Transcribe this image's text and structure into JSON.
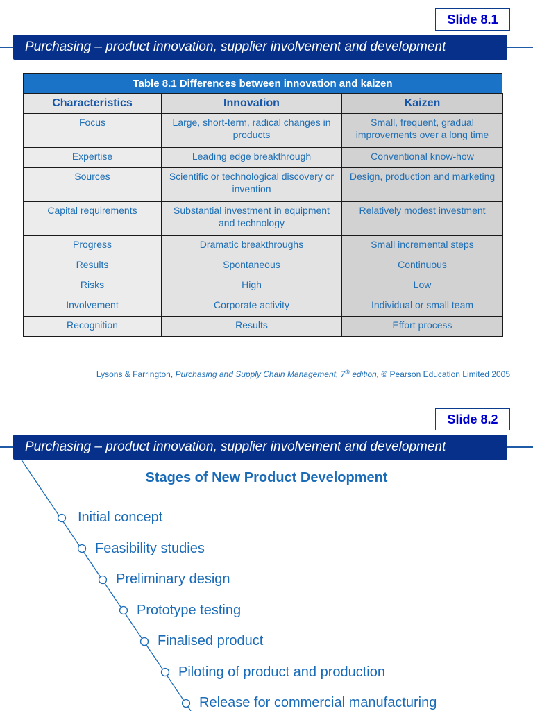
{
  "slide1": {
    "badge": "Slide 8.1",
    "title": "Purchasing – product innovation, supplier involvement and development",
    "table": {
      "caption": "Table 8.1 Differences between innovation and kaizen",
      "headers": [
        "Characteristics",
        "Innovation",
        "Kaizen"
      ],
      "rows": [
        [
          "Focus",
          "Large, short-term, radical changes in products",
          "Small, frequent, gradual improvements over a long time"
        ],
        [
          "Expertise",
          "Leading edge breakthrough",
          "Conventional know-how"
        ],
        [
          "Sources",
          "Scientific or technological discovery or invention",
          "Design, production and marketing"
        ],
        [
          "Capital requirements",
          "Substantial investment in equipment and technology",
          "Relatively modest investment"
        ],
        [
          "Progress",
          "Dramatic breakthroughs",
          "Small incremental steps"
        ],
        [
          "Results",
          "Spontaneous",
          "Continuous"
        ],
        [
          "Risks",
          "High",
          "Low"
        ],
        [
          "Involvement",
          "Corporate activity",
          "Individual or small team"
        ],
        [
          "Recognition",
          "Results",
          "Effort process"
        ]
      ]
    },
    "citation": {
      "authors": "Lysons & Farrington, ",
      "book": "Purchasing and Supply Chain Management, 7",
      "sup": "th",
      "edition": " edition,",
      "rest": " © Pearson Education Limited 2005"
    }
  },
  "slide2": {
    "badge": "Slide 8.2",
    "title": "Purchasing – product innovation, supplier involvement and development",
    "heading": "Stages of New Product Development",
    "stages": [
      "Initial concept",
      "Feasibility studies",
      "Preliminary design",
      "Prototype testing",
      "Finalised product",
      "Piloting of product and production",
      "Release for commercial manufacturing"
    ]
  },
  "colors": {
    "title_bar": "#06308a",
    "caption_bar": "#1a73c6",
    "text_blue": "#1a6bb8",
    "badge_text": "#0000cc"
  }
}
